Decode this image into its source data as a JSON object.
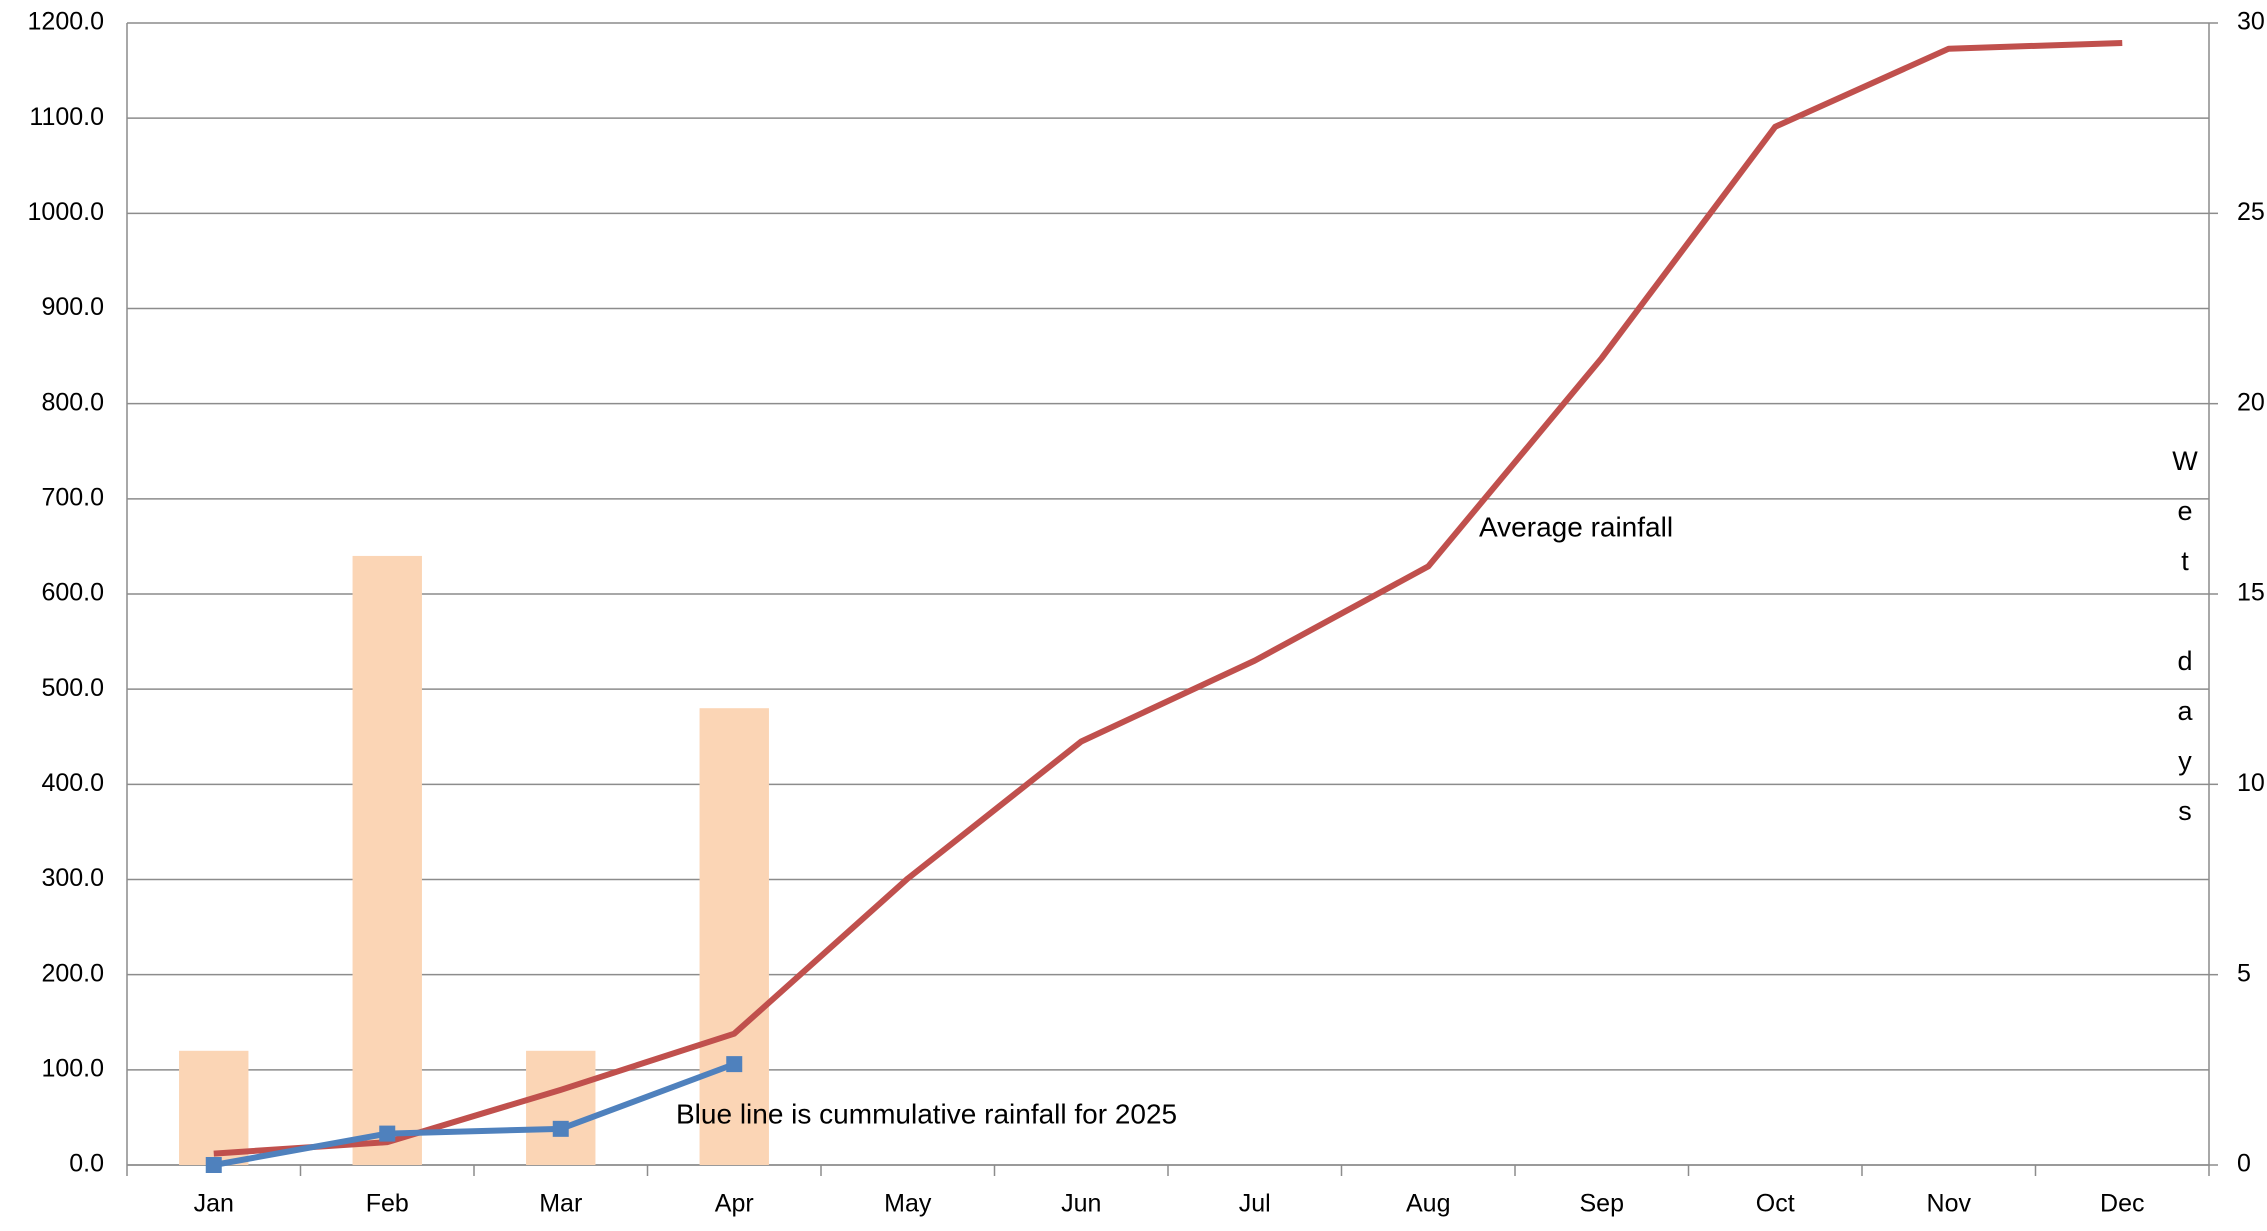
{
  "chart_data": {
    "type": "bar_line",
    "categories": [
      "Jan",
      "Feb",
      "Mar",
      "Apr",
      "May",
      "Jun",
      "Jul",
      "Aug",
      "Sep",
      "Oct",
      "Nov",
      "Dec"
    ],
    "ylim": [
      0,
      1200
    ],
    "yticks": [
      {
        "value": 0,
        "label": "0.0"
      },
      {
        "value": 100,
        "label": "100.0"
      },
      {
        "value": 200,
        "label": "200.0"
      },
      {
        "value": 300,
        "label": "300.0"
      },
      {
        "value": 400,
        "label": "400.0"
      },
      {
        "value": 500,
        "label": "500.0"
      },
      {
        "value": 600,
        "label": "600.0"
      },
      {
        "value": 700,
        "label": "700.0"
      },
      {
        "value": 800,
        "label": "800.0"
      },
      {
        "value": 900,
        "label": "900.0"
      },
      {
        "value": 1000,
        "label": "1000.0"
      },
      {
        "value": 1100,
        "label": "1100.0"
      },
      {
        "value": 1200,
        "label": "1200.0"
      }
    ],
    "y2lim": [
      0,
      30
    ],
    "y2ticks": [
      0,
      5,
      10,
      15,
      20,
      25,
      30
    ],
    "y2_label": "Wet days",
    "grid": true,
    "series": [
      {
        "type": "bar",
        "axis": "y2",
        "color": "#fbd5b5",
        "values": [
          3,
          16,
          3,
          12,
          null,
          null,
          null,
          null,
          null,
          null,
          null,
          null
        ]
      },
      {
        "type": "line",
        "color": "#c0504d",
        "values": [
          12,
          24,
          79,
          138,
          301,
          445,
          530,
          629,
          848,
          1091,
          1173,
          1179
        ]
      },
      {
        "type": "line",
        "color": "#4f81bd",
        "marker": "square",
        "values": [
          0,
          33,
          38,
          106,
          null,
          null,
          null,
          null,
          null,
          null,
          null,
          null
        ]
      }
    ],
    "annotations": [
      "Average rainfall",
      "Blue line is cummulative rainfall for 2025"
    ]
  }
}
